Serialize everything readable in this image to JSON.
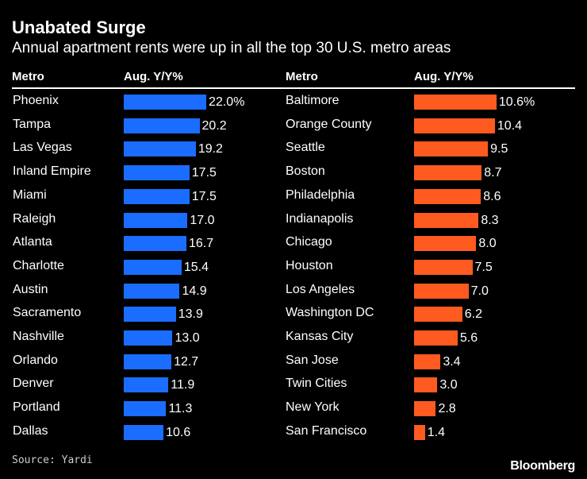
{
  "title": "Unabated Surge",
  "subtitle": "Annual apartment rents were up in all the top 30 U.S. metro areas",
  "headers": {
    "metro": "Metro",
    "value": "Aug. Y/Y%"
  },
  "source": "Source: Yardi",
  "brand": "Bloomberg",
  "colors": {
    "left": "#1a6dff",
    "right": "#ff5a1f"
  },
  "chart_data": [
    {
      "type": "bar",
      "orientation": "horizontal",
      "unit": "Aug. Y/Y%",
      "xlim": [
        0,
        25
      ],
      "categories": [
        "Phoenix",
        "Tampa",
        "Las Vegas",
        "Inland Empire",
        "Miami",
        "Raleigh",
        "Atlanta",
        "Charlotte",
        "Austin",
        "Sacramento",
        "Nashville",
        "Orlando",
        "Denver",
        "Portland",
        "Dallas"
      ],
      "values": [
        22.0,
        20.2,
        19.2,
        17.5,
        17.5,
        17.0,
        16.7,
        15.4,
        14.9,
        13.9,
        13.0,
        12.7,
        11.9,
        11.3,
        10.6
      ],
      "labels": [
        "22.0%",
        "20.2",
        "19.2",
        "17.5",
        "17.5",
        "17.0",
        "16.7",
        "15.4",
        "14.9",
        "13.9",
        "13.0",
        "12.7",
        "11.9",
        "11.3",
        "10.6"
      ]
    },
    {
      "type": "bar",
      "orientation": "horizontal",
      "unit": "Aug. Y/Y%",
      "xlim": [
        0,
        25
      ],
      "categories": [
        "Baltimore",
        "Orange County",
        "Seattle",
        "Boston",
        "Philadelphia",
        "Indianapolis",
        "Chicago",
        "Houston",
        "Los Angeles",
        "Washington DC",
        "Kansas City",
        "San Jose",
        "Twin Cities",
        "New York",
        "San Francisco"
      ],
      "values": [
        10.6,
        10.4,
        9.5,
        8.7,
        8.6,
        8.3,
        8.0,
        7.5,
        7.0,
        6.2,
        5.6,
        3.4,
        3.0,
        2.8,
        1.4
      ],
      "labels": [
        "10.6%",
        "10.4",
        "9.5",
        "8.7",
        "8.6",
        "8.3",
        "8.0",
        "7.5",
        "7.0",
        "6.2",
        "5.6",
        "3.4",
        "3.0",
        "2.8",
        "1.4"
      ]
    }
  ]
}
